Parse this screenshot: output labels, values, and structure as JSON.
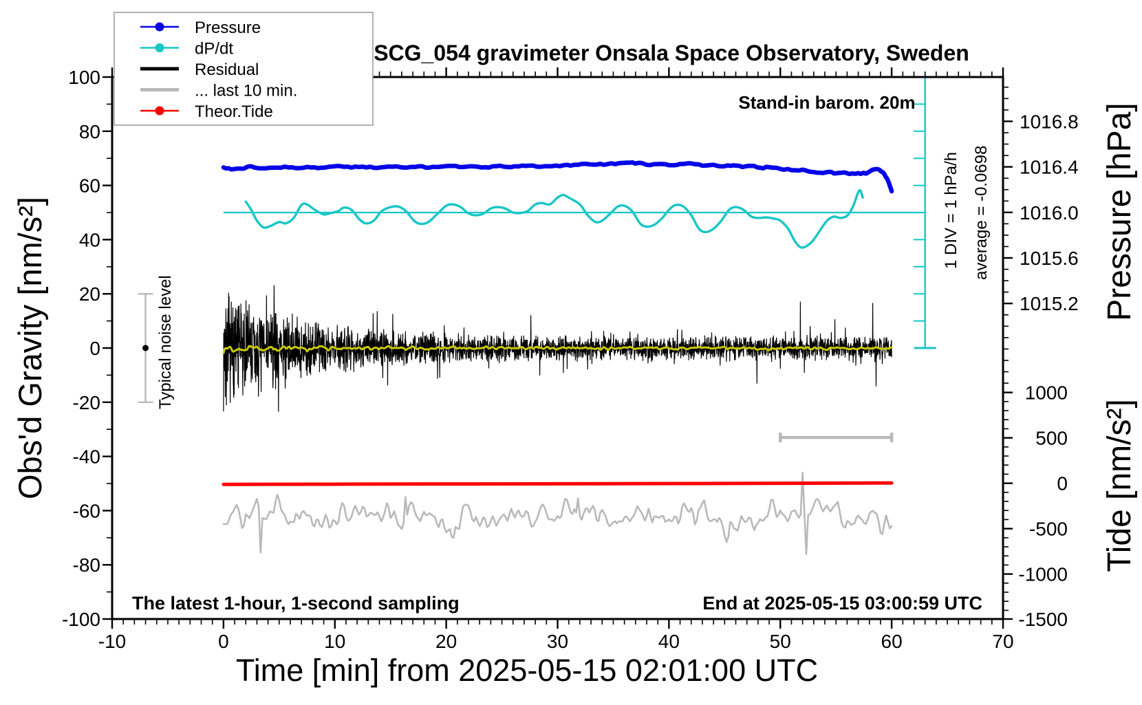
{
  "title": "SCG_054 gravimeter Onsala Space Observatory, Sweden",
  "annotations": {
    "barometer": "Stand-in barom. 20m",
    "div_scale": "1 DIV = 1 hPa/h",
    "average": "average = -0.0698",
    "noise_level": "Typical noise level",
    "sampling": "The latest 1-hour, 1-second sampling",
    "end_time": "End at 2025-05-15 03:00:59 UTC"
  },
  "legend": [
    {
      "label": "Pressure",
      "color": "#0606e8",
      "width": 2.5,
      "dot": true
    },
    {
      "label": "dP/dt",
      "color": "#18c6c6",
      "width": 2.5,
      "dot": true
    },
    {
      "label": "Residual",
      "color": "#000000",
      "width": 5,
      "dot": false
    },
    {
      "label": "... last 10 min.",
      "color": "#b9b9b9",
      "width": 5,
      "dot": false
    },
    {
      "label": "Theor.Tide",
      "color": "#ff0000",
      "width": 2.5,
      "dot": true
    }
  ],
  "chart_data": {
    "type": "line",
    "title": "SCG_054 gravimeter Onsala Space Observatory, Sweden",
    "xlabel": "Time [min] from 2025-05-15 02:01:00 UTC",
    "ylabel_left": "Obs'd Gravity [nm/s²]",
    "ylabel_pressure": "Pressure [hPa]",
    "ylabel_tide": "Tide [nm/s²]",
    "x_axis": {
      "min": -10,
      "max": 70,
      "minor": 1,
      "tick_labels": [
        "-10",
        "0",
        "10",
        "20",
        "30",
        "40",
        "50",
        "60",
        "70"
      ]
    },
    "gravity_axis": {
      "min": -100,
      "max": 100,
      "minor": 10,
      "tick_labels": [
        "100",
        "80",
        "60",
        "40",
        "20",
        "0",
        "-20",
        "-40",
        "-60",
        "-80",
        "-100"
      ]
    },
    "pressure_axis": {
      "minor": 0.1,
      "minor_range": [
        1014.5,
        1017.1
      ],
      "tick_labels": [
        "1016.8",
        "1016.4",
        "1016.0",
        "1015.6",
        "1015.2"
      ]
    },
    "tide_axis": {
      "minor": 100,
      "tick_labels": [
        "1000",
        "500",
        "0",
        "-500",
        "-1000",
        "-1500"
      ]
    },
    "series": [
      {
        "name": "Pressure",
        "axis": "pressure",
        "color": "#0606e8",
        "width": 6.5,
        "jitter": 0.006,
        "points": [
          [
            0,
            1016.395
          ],
          [
            0.7,
            1016.378
          ],
          [
            1.5,
            1016.385
          ],
          [
            2.5,
            1016.404
          ],
          [
            3.5,
            1016.387
          ],
          [
            4.5,
            1016.392
          ],
          [
            5.5,
            1016.401
          ],
          [
            6.5,
            1016.389
          ],
          [
            7.5,
            1016.399
          ],
          [
            8.5,
            1016.389
          ],
          [
            9.5,
            1016.401
          ],
          [
            10.5,
            1016.406
          ],
          [
            11.5,
            1016.394
          ],
          [
            12.5,
            1016.401
          ],
          [
            13.5,
            1016.392
          ],
          [
            14.5,
            1016.399
          ],
          [
            15.5,
            1016.404
          ],
          [
            16.5,
            1016.394
          ],
          [
            17.5,
            1016.404
          ],
          [
            18.5,
            1016.394
          ],
          [
            19.5,
            1016.401
          ],
          [
            20.5,
            1016.408
          ],
          [
            21.5,
            1016.399
          ],
          [
            22.5,
            1016.404
          ],
          [
            23.5,
            1016.397
          ],
          [
            24.5,
            1016.406
          ],
          [
            25.5,
            1016.399
          ],
          [
            26.5,
            1016.404
          ],
          [
            27.5,
            1016.411
          ],
          [
            28.5,
            1016.401
          ],
          [
            29.5,
            1016.406
          ],
          [
            30.5,
            1016.413
          ],
          [
            31.5,
            1016.418
          ],
          [
            32.5,
            1016.427
          ],
          [
            33.5,
            1016.42
          ],
          [
            34.5,
            1016.425
          ],
          [
            35.5,
            1016.432
          ],
          [
            36.5,
            1016.437
          ],
          [
            37.2,
            1016.434
          ],
          [
            38,
            1016.418
          ],
          [
            39,
            1016.425
          ],
          [
            40,
            1016.415
          ],
          [
            41,
            1016.425
          ],
          [
            42,
            1016.43
          ],
          [
            43,
            1016.411
          ],
          [
            44,
            1016.418
          ],
          [
            45,
            1016.406
          ],
          [
            45.8,
            1016.413
          ],
          [
            46.6,
            1016.399
          ],
          [
            47.4,
            1016.408
          ],
          [
            48.2,
            1016.392
          ],
          [
            49,
            1016.397
          ],
          [
            50,
            1016.382
          ],
          [
            51,
            1016.371
          ],
          [
            52,
            1016.375
          ],
          [
            52.8,
            1016.356
          ],
          [
            53.6,
            1016.348
          ],
          [
            54.4,
            1016.356
          ],
          [
            55,
            1016.343
          ],
          [
            55.6,
            1016.35
          ],
          [
            56.2,
            1016.338
          ],
          [
            57,
            1016.345
          ],
          [
            57.7,
            1016.341
          ],
          [
            58.3,
            1016.375
          ],
          [
            58.8,
            1016.378
          ],
          [
            59.2,
            1016.353
          ],
          [
            59.6,
            1016.295
          ],
          [
            60,
            1016.186
          ]
        ]
      },
      {
        "name": "dP/dt",
        "axis": "dpdt",
        "color": "#18c6c6",
        "width": 3.4,
        "points": [
          [
            2,
            0.4
          ],
          [
            2.5,
            0.1
          ],
          [
            3,
            -0.3
          ],
          [
            3.6,
            -0.55
          ],
          [
            4.2,
            -0.5
          ],
          [
            5,
            -0.35
          ],
          [
            5.6,
            -0.4
          ],
          [
            6.3,
            -0.2
          ],
          [
            7,
            0.28
          ],
          [
            7.5,
            0.3
          ],
          [
            8.2,
            0.1
          ],
          [
            9,
            -0.07
          ],
          [
            9.6,
            -0.02
          ],
          [
            10.3,
            0.05
          ],
          [
            10.8,
            0.18
          ],
          [
            11.5,
            0.1
          ],
          [
            12.2,
            -0.25
          ],
          [
            12.8,
            -0.4
          ],
          [
            13.5,
            -0.3
          ],
          [
            14.2,
            0.05
          ],
          [
            15,
            0.2
          ],
          [
            15.7,
            0.22
          ],
          [
            16.4,
            0.05
          ],
          [
            17.1,
            -0.3
          ],
          [
            17.7,
            -0.42
          ],
          [
            18.4,
            -0.35
          ],
          [
            19.2,
            -0.05
          ],
          [
            20,
            0.25
          ],
          [
            20.6,
            0.3
          ],
          [
            21.3,
            0.2
          ],
          [
            22,
            -0.03
          ],
          [
            22.6,
            -0.1
          ],
          [
            23.3,
            -0.05
          ],
          [
            24,
            0.15
          ],
          [
            24.6,
            0.2
          ],
          [
            25.3,
            0.15
          ],
          [
            26,
            0.0
          ],
          [
            26.6,
            -0.02
          ],
          [
            27.3,
            0.05
          ],
          [
            28,
            0.3
          ],
          [
            28.6,
            0.35
          ],
          [
            29.3,
            0.3
          ],
          [
            30,
            0.55
          ],
          [
            30.5,
            0.65
          ],
          [
            31,
            0.55
          ],
          [
            32,
            0.3
          ],
          [
            32.7,
            -0.1
          ],
          [
            33.4,
            -0.35
          ],
          [
            34,
            -0.3
          ],
          [
            34.7,
            -0.05
          ],
          [
            35.4,
            0.22
          ],
          [
            36,
            0.25
          ],
          [
            36.7,
            0.05
          ],
          [
            37.4,
            -0.4
          ],
          [
            38,
            -0.52
          ],
          [
            38.7,
            -0.45
          ],
          [
            39.4,
            -0.2
          ],
          [
            40,
            0.1
          ],
          [
            40.6,
            0.28
          ],
          [
            41.3,
            0.22
          ],
          [
            42,
            -0.1
          ],
          [
            42.7,
            -0.6
          ],
          [
            43.3,
            -0.72
          ],
          [
            44,
            -0.6
          ],
          [
            44.7,
            -0.3
          ],
          [
            45.4,
            0.1
          ],
          [
            46,
            0.2
          ],
          [
            46.7,
            0.1
          ],
          [
            47.4,
            -0.15
          ],
          [
            48,
            -0.2
          ],
          [
            48.7,
            -0.18
          ],
          [
            49.4,
            -0.22
          ],
          [
            50,
            -0.3
          ],
          [
            50.7,
            -0.6
          ],
          [
            51.3,
            -1.05
          ],
          [
            51.8,
            -1.28
          ],
          [
            52.3,
            -1.25
          ],
          [
            52.9,
            -1.05
          ],
          [
            53.5,
            -0.7
          ],
          [
            54.2,
            -0.3
          ],
          [
            54.8,
            -0.15
          ],
          [
            55.4,
            -0.2
          ],
          [
            56,
            -0.12
          ],
          [
            56.5,
            0.2
          ],
          [
            57,
            0.75
          ],
          [
            57.2,
            0.8
          ],
          [
            57.4,
            0.55
          ]
        ]
      },
      {
        "name": "Residual",
        "axis": "gravity",
        "color": "#000000",
        "width": 1.2,
        "noise": {
          "seed": 7,
          "dt": 0.02,
          "t_end": 60,
          "base_amp": 3.4,
          "decay_amp": 14.5,
          "decay_tau": 7.5,
          "smooth": 0,
          "spikes": [
            [
              0.15,
              -18
            ],
            [
              0.25,
              -21
            ],
            [
              0.5,
              19
            ],
            [
              0.7,
              17
            ],
            [
              0.95,
              -17
            ],
            [
              1.2,
              14
            ],
            [
              1.4,
              15.5
            ],
            [
              1.9,
              -14
            ],
            [
              2.3,
              16
            ],
            [
              2.9,
              -12.5
            ],
            [
              13.8,
              13.5
            ],
            [
              14.3,
              -11
            ],
            [
              15.2,
              12.5
            ],
            [
              27.6,
              12
            ],
            [
              28.4,
              -10
            ],
            [
              47.9,
              -13
            ],
            [
              51.8,
              17
            ],
            [
              52.15,
              -9
            ],
            [
              54.9,
              10.5
            ],
            [
              58.3,
              16.5
            ],
            [
              58.6,
              -14
            ]
          ]
        }
      },
      {
        "name": "Residual smoothed",
        "axis": "gravity",
        "color": "#c9c900",
        "width": 3.0,
        "noise": {
          "seed": 12,
          "dt": 0.1,
          "t_end": 60,
          "base_amp": 0.75,
          "decay_amp": 1.35,
          "decay_tau": 8,
          "smooth": 2,
          "spikes": []
        }
      },
      {
        "name": "last 10 min",
        "axis": "gravity",
        "color": "#b9b9b9",
        "width": 2.6,
        "noise": {
          "seed": 3,
          "dt": 0.166667,
          "t_end": 60,
          "mean": -62,
          "base_amp": 8.5,
          "decay_amp": 0,
          "decay_tau": 10,
          "smooth": 2,
          "spikes": [
            [
              3.4,
              -75.5
            ],
            [
              16.4,
              -55
            ],
            [
              31.9,
              -55.5
            ],
            [
              52.0,
              -46
            ],
            [
              52.3,
              -76
            ]
          ]
        }
      },
      {
        "name": "Theor.Tide",
        "axis": "tide",
        "color": "#ff0000",
        "width": 5,
        "points": [
          [
            0,
            -13
          ],
          [
            15,
            -9
          ],
          [
            30,
            -6
          ],
          [
            45,
            -2
          ],
          [
            60,
            3
          ]
        ]
      }
    ],
    "markers": {
      "noise_errorbar": {
        "t": -7,
        "center": 0,
        "half_range": 20
      },
      "last10_bar": {
        "t_start": 50,
        "t_end": 60,
        "gravity": -33
      },
      "dpdt_zero_line": {
        "gravity": 50,
        "t_start": 0,
        "t_end": 63
      },
      "dpdt_ruler": {
        "t": 63,
        "gravity_top": 100,
        "gravity_bottom": 0,
        "divisions": 10
      }
    }
  }
}
